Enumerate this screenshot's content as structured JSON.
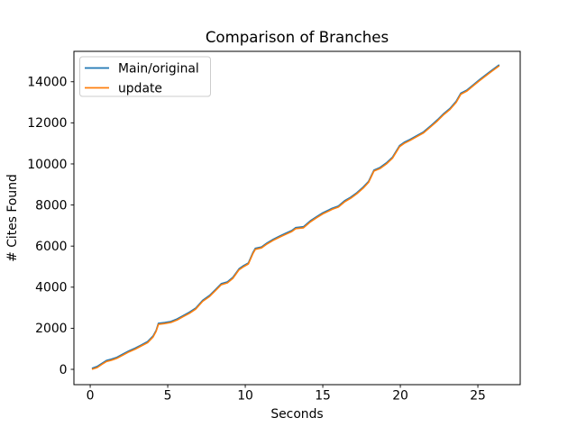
{
  "figure": {
    "background": "#ffffff"
  },
  "chart_data": {
    "type": "line",
    "title": "Comparison of Branches",
    "xlabel": "Seconds",
    "ylabel": "# Cites Found",
    "xlim": [
      -1.05,
      27.73
    ],
    "ylim": [
      -745,
      15480
    ],
    "x_ticks": [
      0,
      5,
      10,
      15,
      20,
      25
    ],
    "y_ticks": [
      0,
      2000,
      4000,
      6000,
      8000,
      10000,
      12000,
      14000
    ],
    "grid": false,
    "legend": {
      "position": "upper left",
      "entries": [
        "Main/original",
        "update"
      ]
    },
    "x": [
      0.15,
      0.45,
      0.75,
      1.05,
      1.35,
      1.7,
      2.1,
      2.5,
      2.9,
      3.3,
      3.7,
      4.05,
      4.25,
      4.4,
      4.8,
      5.2,
      5.6,
      6.0,
      6.4,
      6.8,
      7.25,
      7.7,
      8.1,
      8.45,
      8.85,
      9.2,
      9.6,
      9.9,
      10.2,
      10.5,
      10.65,
      11.05,
      11.4,
      11.8,
      12.2,
      12.6,
      13.0,
      13.25,
      13.75,
      14.2,
      14.6,
      15.0,
      15.4,
      15.6,
      16.0,
      16.4,
      16.8,
      17.2,
      17.6,
      17.95,
      18.3,
      18.7,
      19.1,
      19.5,
      19.95,
      20.25,
      20.65,
      21.0,
      21.5,
      22.0,
      22.4,
      22.8,
      23.2,
      23.6,
      23.9,
      24.3,
      24.7,
      25.1,
      25.5,
      25.9,
      26.35
    ],
    "series": [
      {
        "name": "Main/original",
        "color": "#1f77b4",
        "values": [
          60,
          140,
          290,
          430,
          490,
          580,
          740,
          900,
          1030,
          1190,
          1350,
          1620,
          1900,
          2240,
          2280,
          2330,
          2450,
          2620,
          2780,
          2980,
          3360,
          3600,
          3900,
          4170,
          4260,
          4480,
          4900,
          5050,
          5180,
          5700,
          5890,
          5960,
          6150,
          6330,
          6480,
          6620,
          6760,
          6900,
          6940,
          7230,
          7430,
          7620,
          7760,
          7840,
          7950,
          8200,
          8380,
          8600,
          8870,
          9150,
          9700,
          9830,
          10050,
          10330,
          10890,
          11050,
          11200,
          11350,
          11560,
          11880,
          12150,
          12450,
          12700,
          13050,
          13440,
          13600,
          13850,
          14100,
          14330,
          14560,
          14810
        ]
      },
      {
        "name": "update",
        "color": "#ff7f0e",
        "values": [
          10,
          90,
          240,
          380,
          440,
          530,
          690,
          850,
          980,
          1140,
          1300,
          1570,
          1850,
          2190,
          2230,
          2280,
          2400,
          2570,
          2730,
          2930,
          3310,
          3550,
          3850,
          4120,
          4210,
          4430,
          4850,
          5000,
          5130,
          5650,
          5840,
          5910,
          6100,
          6280,
          6430,
          6570,
          6710,
          6850,
          6890,
          7180,
          7380,
          7570,
          7710,
          7790,
          7900,
          8150,
          8330,
          8550,
          8820,
          9100,
          9650,
          9780,
          10000,
          10280,
          10840,
          11000,
          11150,
          11300,
          11510,
          11830,
          12100,
          12400,
          12650,
          13000,
          13390,
          13550,
          13800,
          14050,
          14280,
          14510,
          14760
        ]
      }
    ]
  }
}
